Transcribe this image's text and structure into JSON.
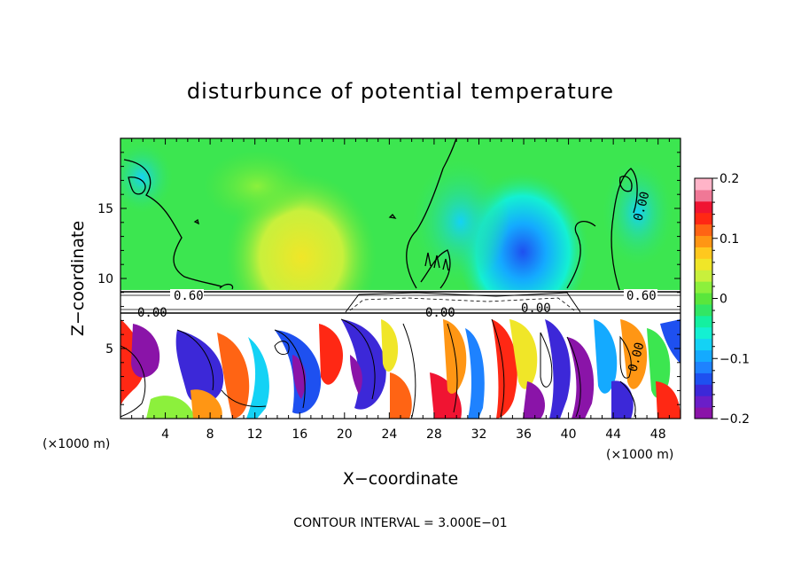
{
  "chart_data": {
    "type": "heatmap",
    "title": "disturbunce of potential temperature",
    "xlabel": "X−coordinate",
    "ylabel": "Z−coordinate",
    "x_unit_left": "(×1000 m)",
    "x_unit_right": "(×1000 m)",
    "xlim": [
      0,
      50
    ],
    "ylim": [
      0,
      20
    ],
    "x_ticks": [
      4,
      8,
      12,
      16,
      20,
      24,
      28,
      32,
      36,
      40,
      44,
      48
    ],
    "y_ticks": [
      5,
      10,
      15
    ],
    "colorbar": {
      "range": [
        -0.2,
        0.2
      ],
      "labels": [
        {
          "value": 0.2,
          "text": "0.2"
        },
        {
          "value": 0.1,
          "text": "0.1"
        },
        {
          "value": 0.0,
          "text": "0"
        },
        {
          "value": -0.1,
          "text": "−0.1"
        },
        {
          "value": -0.2,
          "text": "−0.2"
        }
      ],
      "colors": [
        "#8a14a8",
        "#6a1ec8",
        "#3c28d8",
        "#1e50f0",
        "#1e82ff",
        "#14aaff",
        "#14d2f5",
        "#14f0d2",
        "#14f0a0",
        "#32e664",
        "#5ae63c",
        "#8cf03c",
        "#c8f03c",
        "#f0e628",
        "#ffc81e",
        "#ff9614",
        "#ff6414",
        "#ff2814",
        "#f01432",
        "#f07896",
        "#ffb4c8"
      ]
    },
    "annotations": [
      "0.60",
      "0.00",
      "0.00",
      "0.00",
      "0.60",
      "0.00",
      "0.00"
    ],
    "footer": "CONTOUR INTERVAL = 3.000E−01"
  }
}
